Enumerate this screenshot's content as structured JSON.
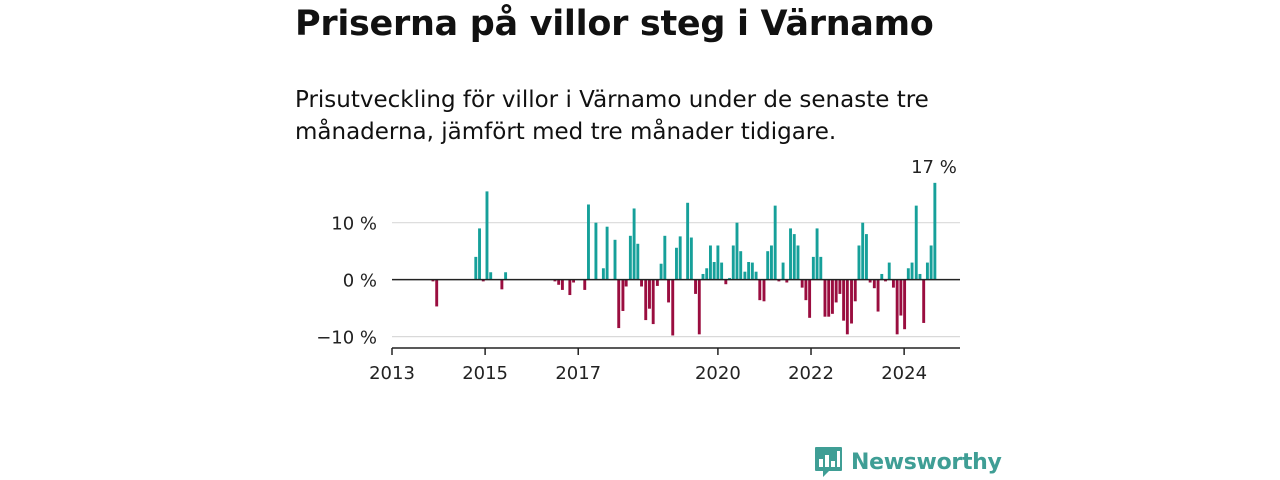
{
  "header": {
    "title": "Priserna på villor steg i Värnamo",
    "subtitle": "Prisutveckling för villor i Värnamo under de senaste tre månaderna, jämfört med tre månader tidigare."
  },
  "brand": {
    "name": "Newsworthy",
    "icon": "newsworthy-bar-chart-logo-icon",
    "color": "#3f9e95"
  },
  "colors": {
    "positive": "#16a09a",
    "negative": "#9a0d3f",
    "grid": "#d9d9d9",
    "axis": "#222222"
  },
  "chart_data": {
    "type": "bar",
    "x_axis": {
      "min": 2013.0,
      "max": 2025.2,
      "ticks": [
        2013,
        2015,
        2017,
        2020,
        2022,
        2024
      ],
      "tick_labels": [
        "2013",
        "2015",
        "2017",
        "2020",
        "2022",
        "2024"
      ]
    },
    "y_axis": {
      "min": -12,
      "max": 17.5,
      "ticks": [
        -10,
        0,
        10
      ],
      "tick_labels": [
        "−10 %",
        "0 %",
        "10 %"
      ]
    },
    "grid": true,
    "last_value_label": "17 %",
    "series": [
      {
        "x": [
          2013.88,
          2013.96,
          2014.8,
          2014.88,
          2014.96,
          2015.04,
          2015.12,
          2015.36,
          2015.44,
          2016.5,
          2016.58,
          2016.66,
          2016.82,
          2016.9,
          2017.14,
          2017.22,
          2017.38,
          2017.54,
          2017.62,
          2017.79,
          2017.87,
          2017.96,
          2018.03,
          2018.12,
          2018.2,
          2018.28,
          2018.36,
          2018.45,
          2018.53,
          2018.61,
          2018.7,
          2018.78,
          2018.86,
          2018.94,
          2019.03,
          2019.11,
          2019.19,
          2019.35,
          2019.43,
          2019.52,
          2019.6,
          2019.68,
          2019.76,
          2019.84,
          2019.92,
          2020.0,
          2020.08,
          2020.17,
          2020.25,
          2020.33,
          2020.41,
          2020.49,
          2020.58,
          2020.66,
          2020.74,
          2020.82,
          2020.9,
          2020.99,
          2021.07,
          2021.15,
          2021.23,
          2021.31,
          2021.4,
          2021.48,
          2021.56,
          2021.64,
          2021.72,
          2021.81,
          2021.89,
          2021.97,
          2022.05,
          2022.13,
          2022.21,
          2022.3,
          2022.38,
          2022.46,
          2022.54,
          2022.62,
          2022.7,
          2022.78,
          2022.87,
          2022.95,
          2023.03,
          2023.11,
          2023.19,
          2023.27,
          2023.36,
          2023.44,
          2023.52,
          2023.6,
          2023.68,
          2023.77,
          2023.85,
          2023.93,
          2024.01,
          2024.09,
          2024.17,
          2024.26,
          2024.34,
          2024.42,
          2024.5,
          2024.58,
          2024.66
        ],
        "values": [
          -0.3,
          -4.7,
          4.0,
          9.0,
          -0.3,
          15.5,
          1.3,
          -1.7,
          1.3,
          -0.3,
          -0.9,
          -1.8,
          -2.7,
          -0.5,
          -1.8,
          13.2,
          10.0,
          2.0,
          9.3,
          7.0,
          -8.5,
          -5.5,
          -1.2,
          7.7,
          12.5,
          6.3,
          -1.2,
          -7.1,
          -5.1,
          -7.8,
          -1.1,
          2.8,
          7.7,
          -4.0,
          -9.8,
          5.6,
          7.6,
          13.5,
          7.4,
          -2.5,
          -9.6,
          1.0,
          2.0,
          6.0,
          3.1,
          6.0,
          3.0,
          -0.8,
          0.3,
          6.0,
          10.0,
          5.0,
          1.4,
          3.1,
          3.0,
          1.4,
          -3.6,
          -3.8,
          5.0,
          6.0,
          13.0,
          -0.3,
          3.0,
          -0.5,
          9.0,
          8.0,
          6.0,
          -1.4,
          -3.6,
          -6.7,
          4.0,
          9.0,
          4.0,
          -6.5,
          -6.5,
          -6.0,
          -4.0,
          -2.5,
          -7.2,
          -9.6,
          -7.7,
          -3.8,
          6.0,
          10.0,
          8.0,
          -0.5,
          -1.5,
          -5.6,
          1.0,
          -0.3,
          3.0,
          -1.4,
          -9.6,
          -6.3,
          -8.7,
          2.0,
          3.0,
          13.0,
          1.0,
          -7.6,
          3.0,
          6.0,
          17.0
        ]
      }
    ]
  }
}
